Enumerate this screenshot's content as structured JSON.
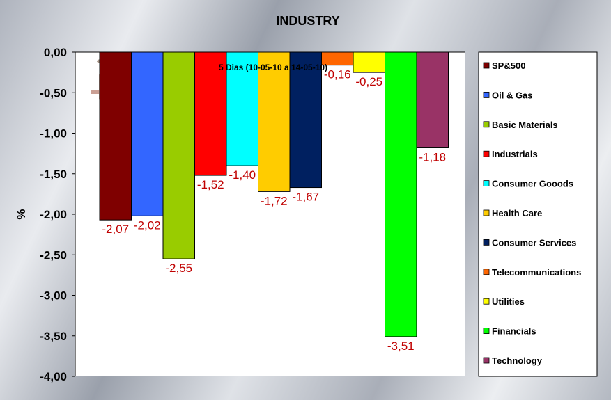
{
  "chart_data": {
    "type": "bar",
    "title": "INDUSTRY",
    "subtitle": "5 Dias (10-05-10 a 14-05-10)",
    "ylabel": "%",
    "xlabel": "",
    "ylim": [
      -4.0,
      0.0
    ],
    "yticks": [
      "0,00",
      "-0,50",
      "-1,00",
      "-1,50",
      "-2,00",
      "-2,50",
      "-3,00",
      "-3,50",
      "-4,00"
    ],
    "grid": false,
    "legend_position": "right",
    "categories": [
      "SP&500",
      "Oil & Gas",
      "Basic Materials",
      "Industrials",
      "Consumer Gooods",
      "Health Care",
      "Consumer Services",
      "Telecommunications",
      "Utilities",
      "Financials",
      "Technology"
    ],
    "values": [
      -2.07,
      -2.02,
      -2.55,
      -1.52,
      -1.4,
      -1.72,
      -1.67,
      -0.16,
      -0.25,
      -3.51,
      -1.18
    ],
    "value_labels": [
      "-2,07",
      "-2,02",
      "-2,55",
      "-1,52",
      "-1,40",
      "-1,72",
      "-1,67",
      "-0,16",
      "-0,25",
      "-3,51",
      "-1,18"
    ],
    "colors": [
      "#7f0000",
      "#3366ff",
      "#99cc00",
      "#ff0000",
      "#00ffff",
      "#ffcc00",
      "#002060",
      "#ff6600",
      "#ffff00",
      "#00ff00",
      "#993366"
    ]
  }
}
